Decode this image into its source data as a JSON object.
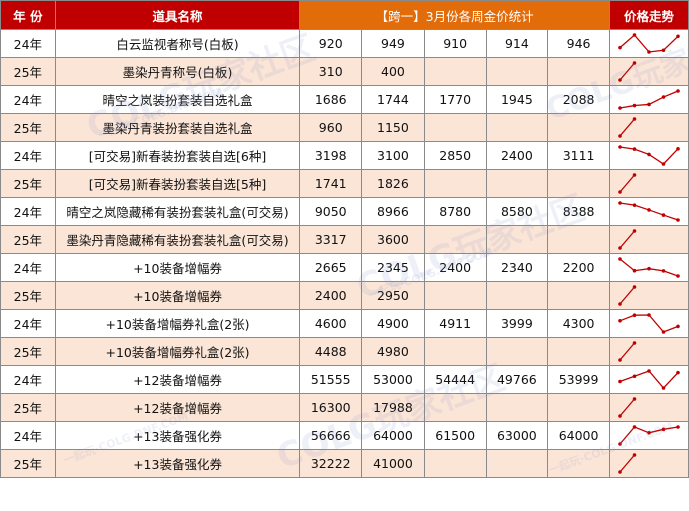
{
  "header": {
    "year": "年 份",
    "item_name": "道具名称",
    "price_stats": "【跨一】3月份各周金价统计",
    "trend": "价格走势"
  },
  "columns_count": 5,
  "rows": [
    {
      "year": "24年",
      "name": "白云监视者称号(白板)",
      "values": [
        "920",
        "949",
        "910",
        "914",
        "946"
      ]
    },
    {
      "year": "25年",
      "name": "墨染丹青称号(白板)",
      "values": [
        "310",
        "400",
        "",
        "",
        ""
      ]
    },
    {
      "year": "24年",
      "name": "晴空之岚装扮套装自选礼盒",
      "values": [
        "1686",
        "1744",
        "1770",
        "1945",
        "2088"
      ]
    },
    {
      "year": "25年",
      "name": "墨染丹青装扮套装自选礼盒",
      "values": [
        "960",
        "1150",
        "",
        "",
        ""
      ]
    },
    {
      "year": "24年",
      "name": "[可交易]新春装扮套装自选[6种]",
      "values": [
        "3198",
        "3100",
        "2850",
        "2400",
        "3111"
      ]
    },
    {
      "year": "25年",
      "name": "[可交易]新春装扮套装自选[5种]",
      "values": [
        "1741",
        "1826",
        "",
        "",
        ""
      ]
    },
    {
      "year": "24年",
      "name": "晴空之岚隐藏稀有装扮套装礼盒(可交易)",
      "values": [
        "9050",
        "8966",
        "8780",
        "8580",
        "8388"
      ]
    },
    {
      "year": "25年",
      "name": "墨染丹青隐藏稀有装扮套装礼盒(可交易)",
      "values": [
        "3317",
        "3600",
        "",
        "",
        ""
      ]
    },
    {
      "year": "24年",
      "name": "+10装备增幅券",
      "values": [
        "2665",
        "2345",
        "2400",
        "2340",
        "2200"
      ]
    },
    {
      "year": "25年",
      "name": "+10装备增幅券",
      "values": [
        "2400",
        "2950",
        "",
        "",
        ""
      ]
    },
    {
      "year": "24年",
      "name": "+10装备增幅券礼盒(2张)",
      "values": [
        "4600",
        "4900",
        "4911",
        "3999",
        "4300"
      ]
    },
    {
      "year": "25年",
      "name": "+10装备增幅券礼盒(2张)",
      "values": [
        "4488",
        "4980",
        "",
        "",
        ""
      ]
    },
    {
      "year": "24年",
      "name": "+12装备增幅券",
      "values": [
        "51555",
        "53000",
        "54444",
        "49766",
        "53999"
      ]
    },
    {
      "year": "25年",
      "name": "+12装备增幅券",
      "values": [
        "16300",
        "17988",
        "",
        "",
        ""
      ]
    },
    {
      "year": "24年",
      "name": "+13装备强化券",
      "values": [
        "56666",
        "64000",
        "61500",
        "63000",
        "64000"
      ]
    },
    {
      "year": "25年",
      "name": "+13装备强化券",
      "values": [
        "32222",
        "41000",
        "",
        "",
        ""
      ]
    }
  ],
  "watermark": {
    "logo": "COLG玩家社区",
    "slogan": "一起玩·COLG.DNF.COM"
  },
  "colors": {
    "header_red": "#c00000",
    "header_orange": "#e26b0a",
    "row_alt": "#fbe5d6",
    "sparkline": "#c00000"
  }
}
